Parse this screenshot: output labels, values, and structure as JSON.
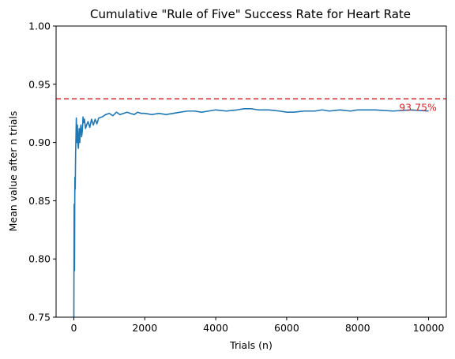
{
  "chart_data": {
    "type": "line",
    "title": "Cumulative \"Rule of Five\" Success Rate for Heart Rate",
    "xlabel": "Trials (n)",
    "ylabel": "Mean value after n trials",
    "xlim": [
      -500,
      10500
    ],
    "ylim": [
      0.75,
      1.0
    ],
    "xticks": [
      0,
      2000,
      4000,
      6000,
      8000,
      10000
    ],
    "xtick_labels": [
      "0",
      "2000",
      "4000",
      "6000",
      "8000",
      "10000"
    ],
    "yticks": [
      0.75,
      0.8,
      0.85,
      0.9,
      0.95,
      1.0
    ],
    "ytick_labels": [
      "0.75",
      "0.80",
      "0.85",
      "0.90",
      "0.95",
      "1.00"
    ],
    "grid": false,
    "series": [
      {
        "color": "#1f77b4",
        "x": [
          1,
          5,
          10,
          15,
          20,
          25,
          30,
          40,
          50,
          60,
          70,
          80,
          90,
          100,
          110,
          120,
          130,
          140,
          150,
          160,
          170,
          180,
          200,
          220,
          240,
          260,
          280,
          300,
          330,
          360,
          400,
          450,
          500,
          550,
          600,
          650,
          700,
          800,
          900,
          1000,
          1100,
          1200,
          1300,
          1400,
          1500,
          1600,
          1700,
          1800,
          1900,
          2000,
          2200,
          2400,
          2600,
          2800,
          3000,
          3200,
          3400,
          3600,
          3800,
          4000,
          4300,
          4600,
          4800,
          5000,
          5200,
          5500,
          5800,
          6000,
          6200,
          6500,
          6800,
          7000,
          7200,
          7500,
          7800,
          8000,
          8500,
          9000,
          9500,
          10000
        ],
        "y": [
          0.75,
          0.8,
          0.847,
          0.815,
          0.79,
          0.84,
          0.87,
          0.86,
          0.89,
          0.905,
          0.921,
          0.91,
          0.9,
          0.915,
          0.905,
          0.897,
          0.895,
          0.905,
          0.912,
          0.908,
          0.9,
          0.91,
          0.915,
          0.905,
          0.91,
          0.922,
          0.917,
          0.92,
          0.912,
          0.915,
          0.918,
          0.913,
          0.92,
          0.915,
          0.92,
          0.916,
          0.921,
          0.922,
          0.924,
          0.925,
          0.923,
          0.926,
          0.924,
          0.925,
          0.926,
          0.925,
          0.924,
          0.926,
          0.925,
          0.925,
          0.924,
          0.925,
          0.924,
          0.925,
          0.926,
          0.927,
          0.927,
          0.926,
          0.927,
          0.928,
          0.927,
          0.928,
          0.929,
          0.929,
          0.928,
          0.928,
          0.927,
          0.926,
          0.926,
          0.927,
          0.927,
          0.928,
          0.927,
          0.928,
          0.927,
          0.928,
          0.928,
          0.927,
          0.928,
          0.927
        ]
      }
    ],
    "reference_line": {
      "y": 0.9375,
      "color": "#d62728",
      "style": "dashed",
      "label": "93.75%",
      "label_x": 9700
    }
  }
}
